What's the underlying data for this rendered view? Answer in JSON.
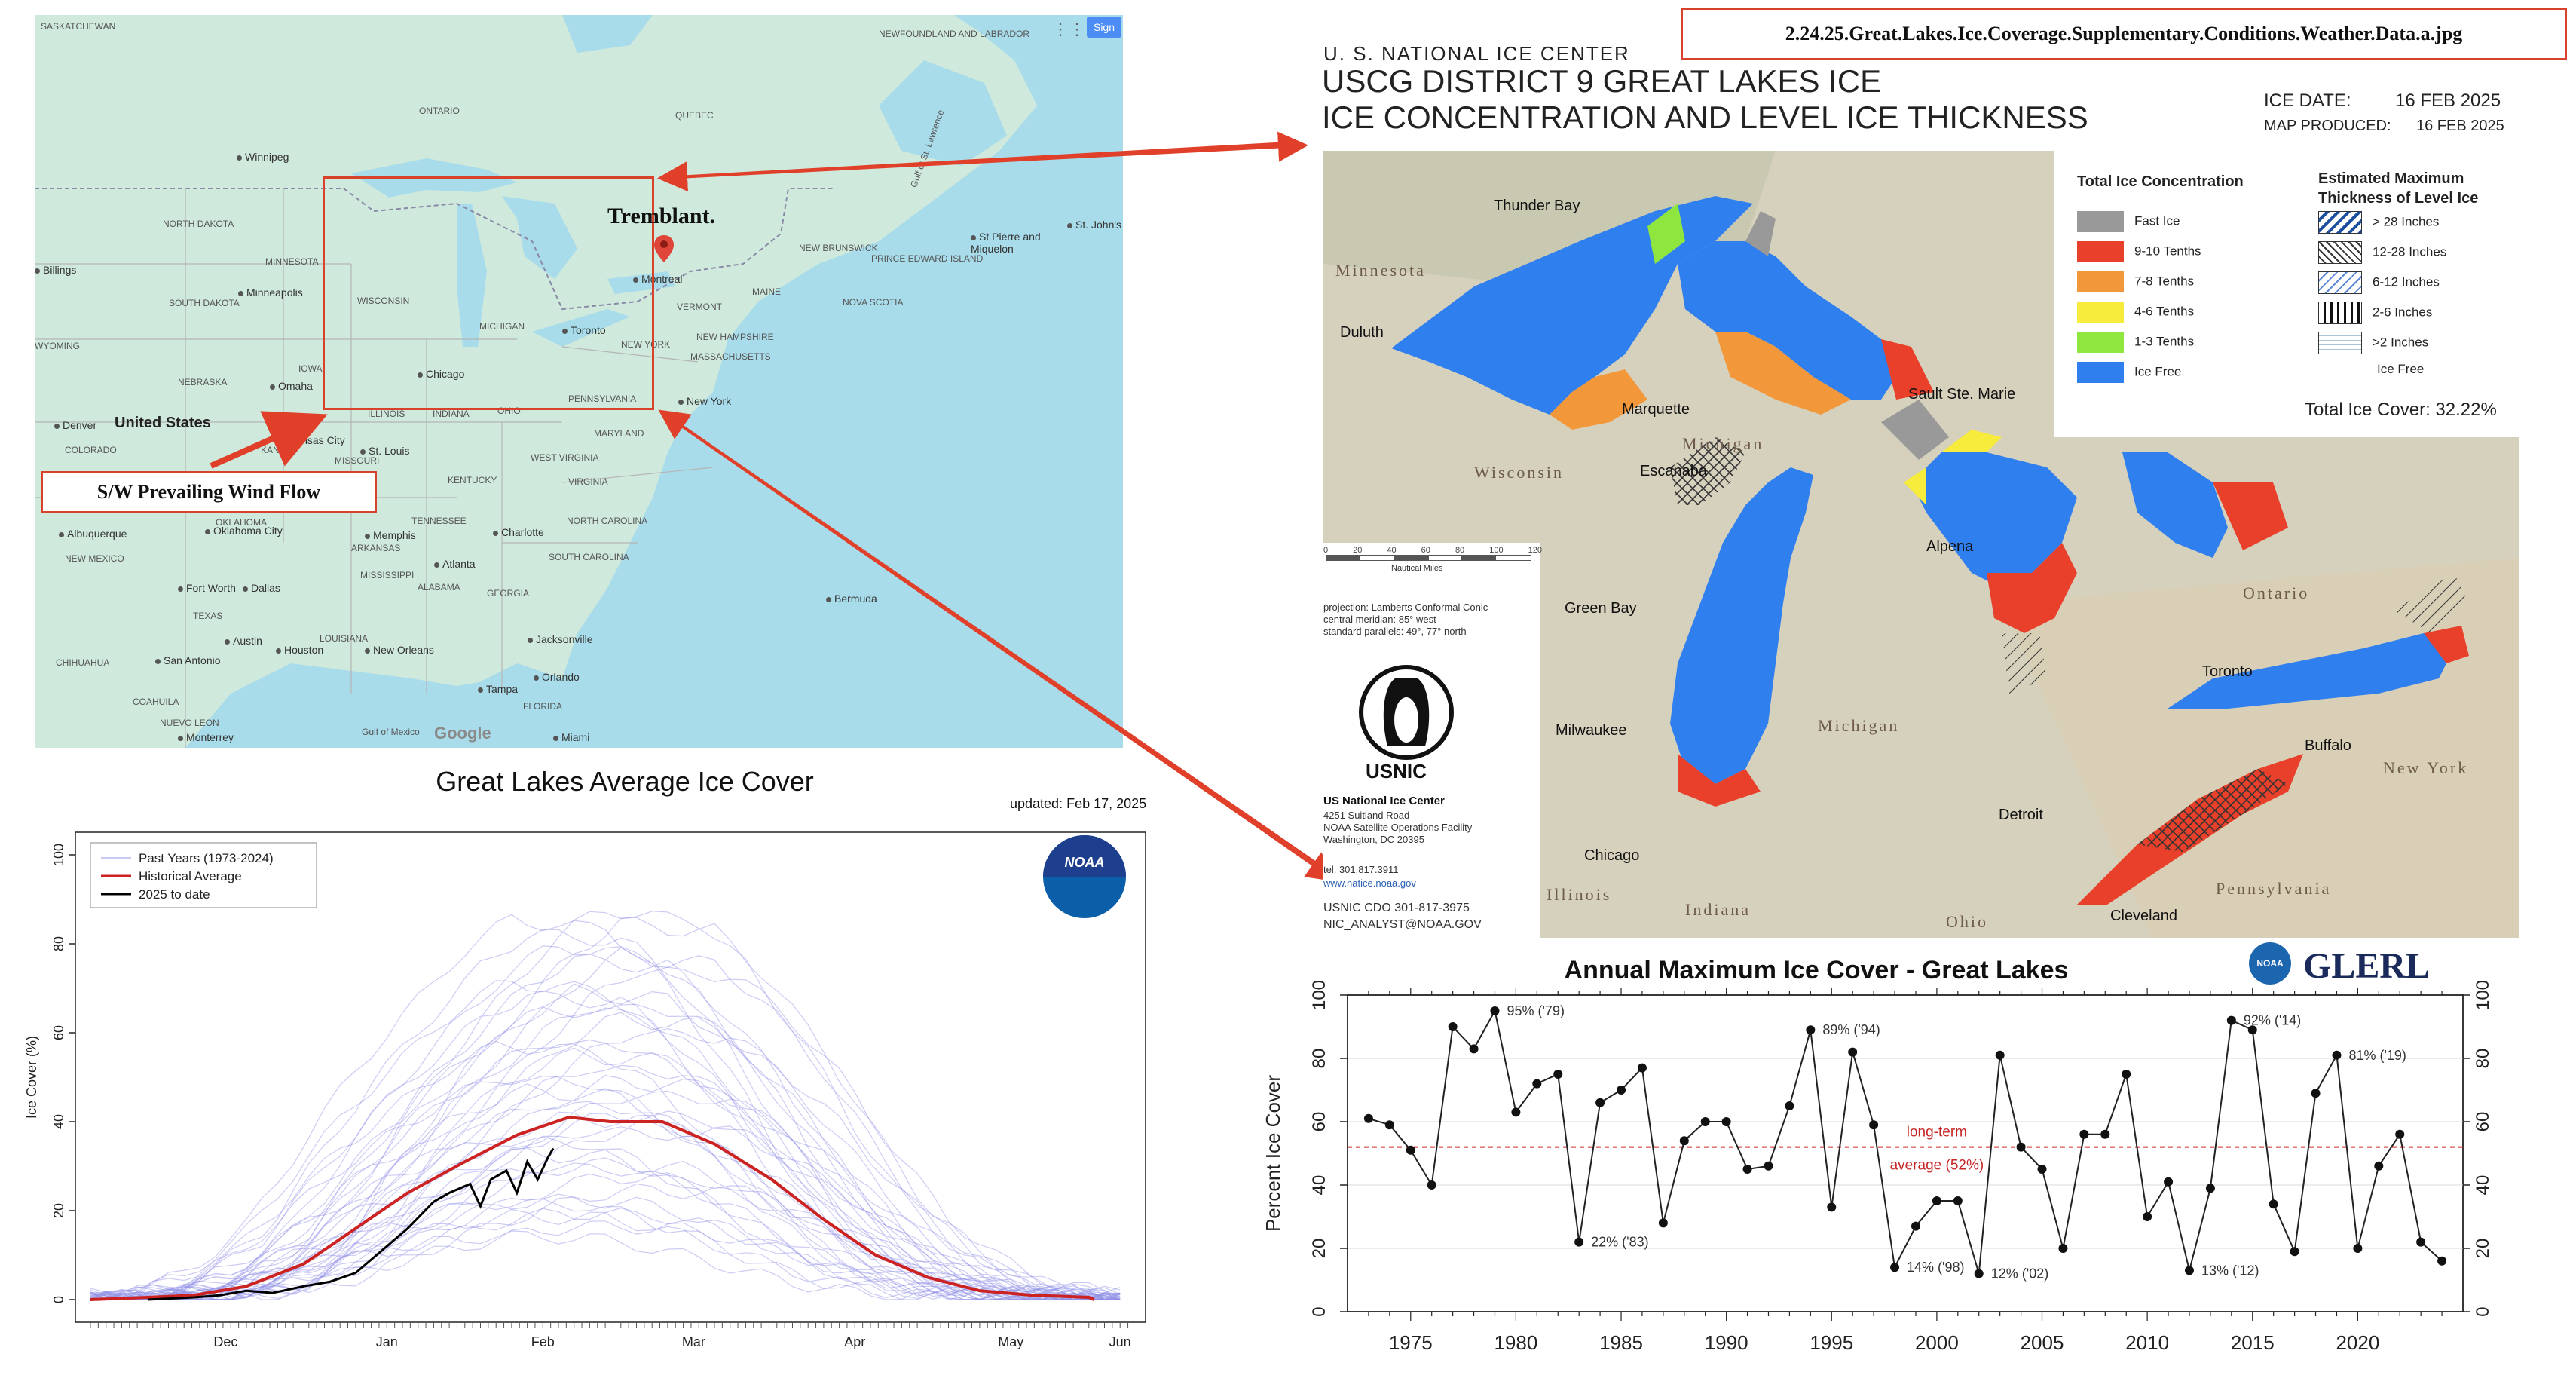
{
  "filename_label": "2.24.25.Great.Lakes.Ice.Coverage.Supplementary.Conditions.Weather.Data.a.jpg",
  "map": {
    "region_labels": [
      "SASKATCHEWAN",
      "ONTARIO",
      "QUEBEC",
      "NEWFOUNDLAND AND LABRADOR",
      "NORTH DAKOTA",
      "MINNESOTA",
      "SOUTH DAKOTA",
      "WISCONSIN",
      "MICHIGAN",
      "NEBRASKA",
      "IOWA",
      "ILLINOIS",
      "INDIANA",
      "OHIO",
      "PENNSYLVANIA",
      "NEW YORK",
      "VERMONT",
      "NEW HAMPSHIRE",
      "MAINE",
      "MASSACHUSETTS",
      "NEW BRUNSWICK",
      "PRINCE EDWARD ISLAND",
      "NOVA SCOTIA",
      "Gulf of St. Lawrence",
      "KANSAS",
      "MISSOURI",
      "KENTUCKY",
      "VIRGINIA",
      "WEST VIRGINIA",
      "MARYLAND",
      "COLORADO",
      "OKLAHOMA",
      "TENNESSEE",
      "NORTH CAROLINA",
      "SOUTH CAROLINA",
      "ARKANSAS",
      "TEXAS",
      "LOUISIANA",
      "MISSISSIPPI",
      "ALABAMA",
      "GEORGIA",
      "FLORIDA",
      "NEW MEXICO",
      "CHIHUAHUA",
      "COAHUILA",
      "NUEVO LEON",
      "Gulf of Mexico",
      "WYOMING"
    ],
    "cities": [
      "Winnipeg",
      "Minneapolis",
      "Chicago",
      "Toronto",
      "Montreal",
      "New York",
      "Omaha",
      "Kansas City",
      "St. Louis",
      "Denver",
      "Albuquerque",
      "Oklahoma City",
      "Memphis",
      "Charlotte",
      "Atlanta",
      "Fort Worth",
      "Dallas",
      "Austin",
      "San Antonio",
      "Houston",
      "New Orleans",
      "Jacksonville",
      "Orlando",
      "Tampa",
      "Miami",
      "Monterrey",
      "Billings",
      "St. John's",
      "St Pierre and Miquelon",
      "Bermuda"
    ],
    "country_label": "United States",
    "marker_label": "Tremblant.",
    "wind_label": "S/W Prevailing Wind Flow",
    "sign_in": "Sign",
    "google": "Google",
    "colors": {
      "land": "#cfe9dc",
      "water": "#a9dcea",
      "box": "#d9422a"
    }
  },
  "ice_chart": {
    "agency": "U. S. NATIONAL ICE CENTER",
    "title_line1": "USCG DISTRICT 9 GREAT LAKES ICE",
    "title_line2": "ICE CONCENTRATION AND LEVEL ICE THICKNESS",
    "ice_date_label": "ICE DATE:",
    "ice_date": "16 FEB 2025",
    "map_produced_label": "MAP PRODUCED:",
    "map_produced": "16 FEB 2025",
    "concentration_title": "Total Ice Concentration",
    "concentration_legend": [
      {
        "label": "Fast Ice",
        "color": "#999999"
      },
      {
        "label": "9-10 Tenths",
        "color": "#e8402a"
      },
      {
        "label": "7-8 Tenths",
        "color": "#f2973a"
      },
      {
        "label": "4-6 Tenths",
        "color": "#f7ec3c"
      },
      {
        "label": "1-3 Tenths",
        "color": "#8ee63e"
      },
      {
        "label": "Ice Free",
        "color": "#2f7fef"
      }
    ],
    "thickness_title_1": "Estimated Maximum",
    "thickness_title_2": "Thickness of Level Ice",
    "thickness_legend": [
      "> 28 Inches",
      "12-28 Inches",
      "6-12 Inches",
      "2-6 Inches",
      ">2 Inches",
      "Ice Free"
    ],
    "total_ice_cover": "Total Ice Cover: 32.22%",
    "scale_ticks": [
      "0",
      "20",
      "40",
      "60",
      "80",
      "100",
      "120"
    ],
    "scale_unit": "Nautical Miles",
    "projection_lines": [
      "projection: Lamberts Conformal Conic",
      "central meridian: 85° west",
      "standard parallels: 49°, 77° north"
    ],
    "usnic_short": "USNIC",
    "usnic_name": "US National Ice Center",
    "address_lines": [
      "4251 Suitland Road",
      "NOAA Satellite Operations Facility",
      "Washington, DC  20395"
    ],
    "tel": "tel. 301.817.3911",
    "web": "www.natice.noaa.gov",
    "cdo": "USNIC CDO 301-817-3975",
    "analyst": "NIC_ANALYST@NOAA.GOV",
    "cities": [
      "Thunder Bay",
      "Duluth",
      "Marquette",
      "Sault Ste. Marie",
      "Escanaba",
      "Alpena",
      "Green Bay",
      "Milwaukee",
      "Chicago",
      "Detroit",
      "Toronto",
      "Buffalo",
      "Cleveland"
    ],
    "regions": [
      "Minnesota",
      "Michigan",
      "Wisconsin",
      "Ontario",
      "Michigan",
      "New York",
      "Illinois",
      "Indiana",
      "Ohio",
      "Pennsylvania"
    ],
    "colors": {
      "water": "#2f7fef",
      "land": "#d7d3c2"
    }
  },
  "ice_cover_chart": {
    "title": "Great Lakes Average Ice Cover",
    "updated": "updated: Feb 17, 2025",
    "noaa_logo": "NOAA",
    "chart_data": {
      "type": "line",
      "ylabel": "Ice Cover (%)",
      "xlabel": "",
      "ylim": [
        0,
        100
      ],
      "yticks": [
        "0",
        "20",
        "40",
        "60",
        "80",
        "100"
      ],
      "xticks": [
        "Dec",
        "Jan",
        "Feb",
        "Mar",
        "Apr",
        "May",
        "Jun"
      ],
      "legend": [
        "Past Years (1973-2024)",
        "Historical Average",
        "2025 to date"
      ],
      "legend_position": "top-left",
      "series": [
        {
          "name": "Historical Average",
          "color": "#cc2222",
          "x": [
            "Nov 20",
            "Dec 1",
            "Dec 10",
            "Dec 20",
            "Dec 31",
            "Jan 10",
            "Jan 20",
            "Jan 31",
            "Feb 10",
            "Feb 20",
            "Feb 28",
            "Mar 10",
            "Mar 20",
            "Mar 31",
            "Apr 10",
            "Apr 20",
            "Apr 30",
            "May 10",
            "May 20",
            "May 31",
            "Jun 1"
          ],
          "y": [
            0,
            0.5,
            1,
            3,
            8,
            16,
            24,
            31,
            37,
            41,
            40,
            40,
            35,
            27,
            18,
            10,
            5,
            2,
            1,
            0.5,
            0
          ]
        },
        {
          "name": "2025 to date",
          "color": "#000000",
          "x": [
            "Dec 1",
            "Dec 10",
            "Dec 15",
            "Dec 20",
            "Dec 25",
            "Dec 31",
            "Jan 5",
            "Jan 10",
            "Jan 15",
            "Jan 20",
            "Jan 25",
            "Jan 28",
            "Feb 1",
            "Feb 3",
            "Feb 5",
            "Feb 8",
            "Feb 10",
            "Feb 12",
            "Feb 14",
            "Feb 16",
            "Feb 17"
          ],
          "y": [
            0,
            0.5,
            1,
            2,
            1.5,
            3,
            4,
            6,
            11,
            16,
            22,
            24,
            26,
            21,
            27,
            29,
            24,
            31,
            27,
            32,
            34
          ]
        }
      ]
    }
  },
  "annual_max_chart": {
    "title": "Annual Maximum Ice Cover - Great Lakes",
    "glerl_logo": "GLERL",
    "noaa_logo": "NOAA",
    "chart_data": {
      "type": "line",
      "ylabel": "Percent Ice Cover",
      "xlabel": "",
      "ylim": [
        0,
        100
      ],
      "xlim": [
        1972,
        2025
      ],
      "yticks": [
        "0",
        "20",
        "40",
        "60",
        "80",
        "100"
      ],
      "xticks": [
        "1975",
        "1980",
        "1985",
        "1990",
        "1995",
        "2000",
        "2005",
        "2010",
        "2015",
        "2020"
      ],
      "x": [
        1973,
        1974,
        1975,
        1976,
        1977,
        1978,
        1979,
        1980,
        1981,
        1982,
        1983,
        1984,
        1985,
        1986,
        1987,
        1988,
        1989,
        1990,
        1991,
        1992,
        1993,
        1994,
        1995,
        1996,
        1997,
        1998,
        1999,
        2000,
        2001,
        2002,
        2003,
        2004,
        2005,
        2006,
        2007,
        2008,
        2009,
        2010,
        2011,
        2012,
        2013,
        2014,
        2015,
        2016,
        2017,
        2018,
        2019,
        2020,
        2021,
        2022,
        2023,
        2024
      ],
      "y": [
        61,
        59,
        51,
        40,
        90,
        83,
        95,
        63,
        72,
        75,
        22,
        66,
        70,
        77,
        28,
        54,
        60,
        60,
        45,
        46,
        65,
        89,
        33,
        82,
        59,
        14,
        27,
        35,
        35,
        12,
        81,
        52,
        45,
        20,
        56,
        56,
        75,
        30,
        41,
        13,
        39,
        92,
        89,
        34,
        19,
        69,
        81,
        20,
        46,
        56,
        22,
        16
      ],
      "average": 52,
      "average_label_1": "long-term",
      "average_label_2": "average (52%)",
      "annotations": [
        {
          "text": "95% ('79)",
          "x": 1979,
          "y": 95
        },
        {
          "text": "22% ('83)",
          "x": 1983,
          "y": 22
        },
        {
          "text": "89% ('94)",
          "x": 1994,
          "y": 89
        },
        {
          "text": "14% ('98)",
          "x": 1998,
          "y": 14
        },
        {
          "text": "12% ('02)",
          "x": 2002,
          "y": 12
        },
        {
          "text": "13% ('12)",
          "x": 2012,
          "y": 13
        },
        {
          "text": "92% ('14)",
          "x": 2014,
          "y": 92
        },
        {
          "text": "81% ('19)",
          "x": 2019,
          "y": 81
        }
      ]
    }
  }
}
